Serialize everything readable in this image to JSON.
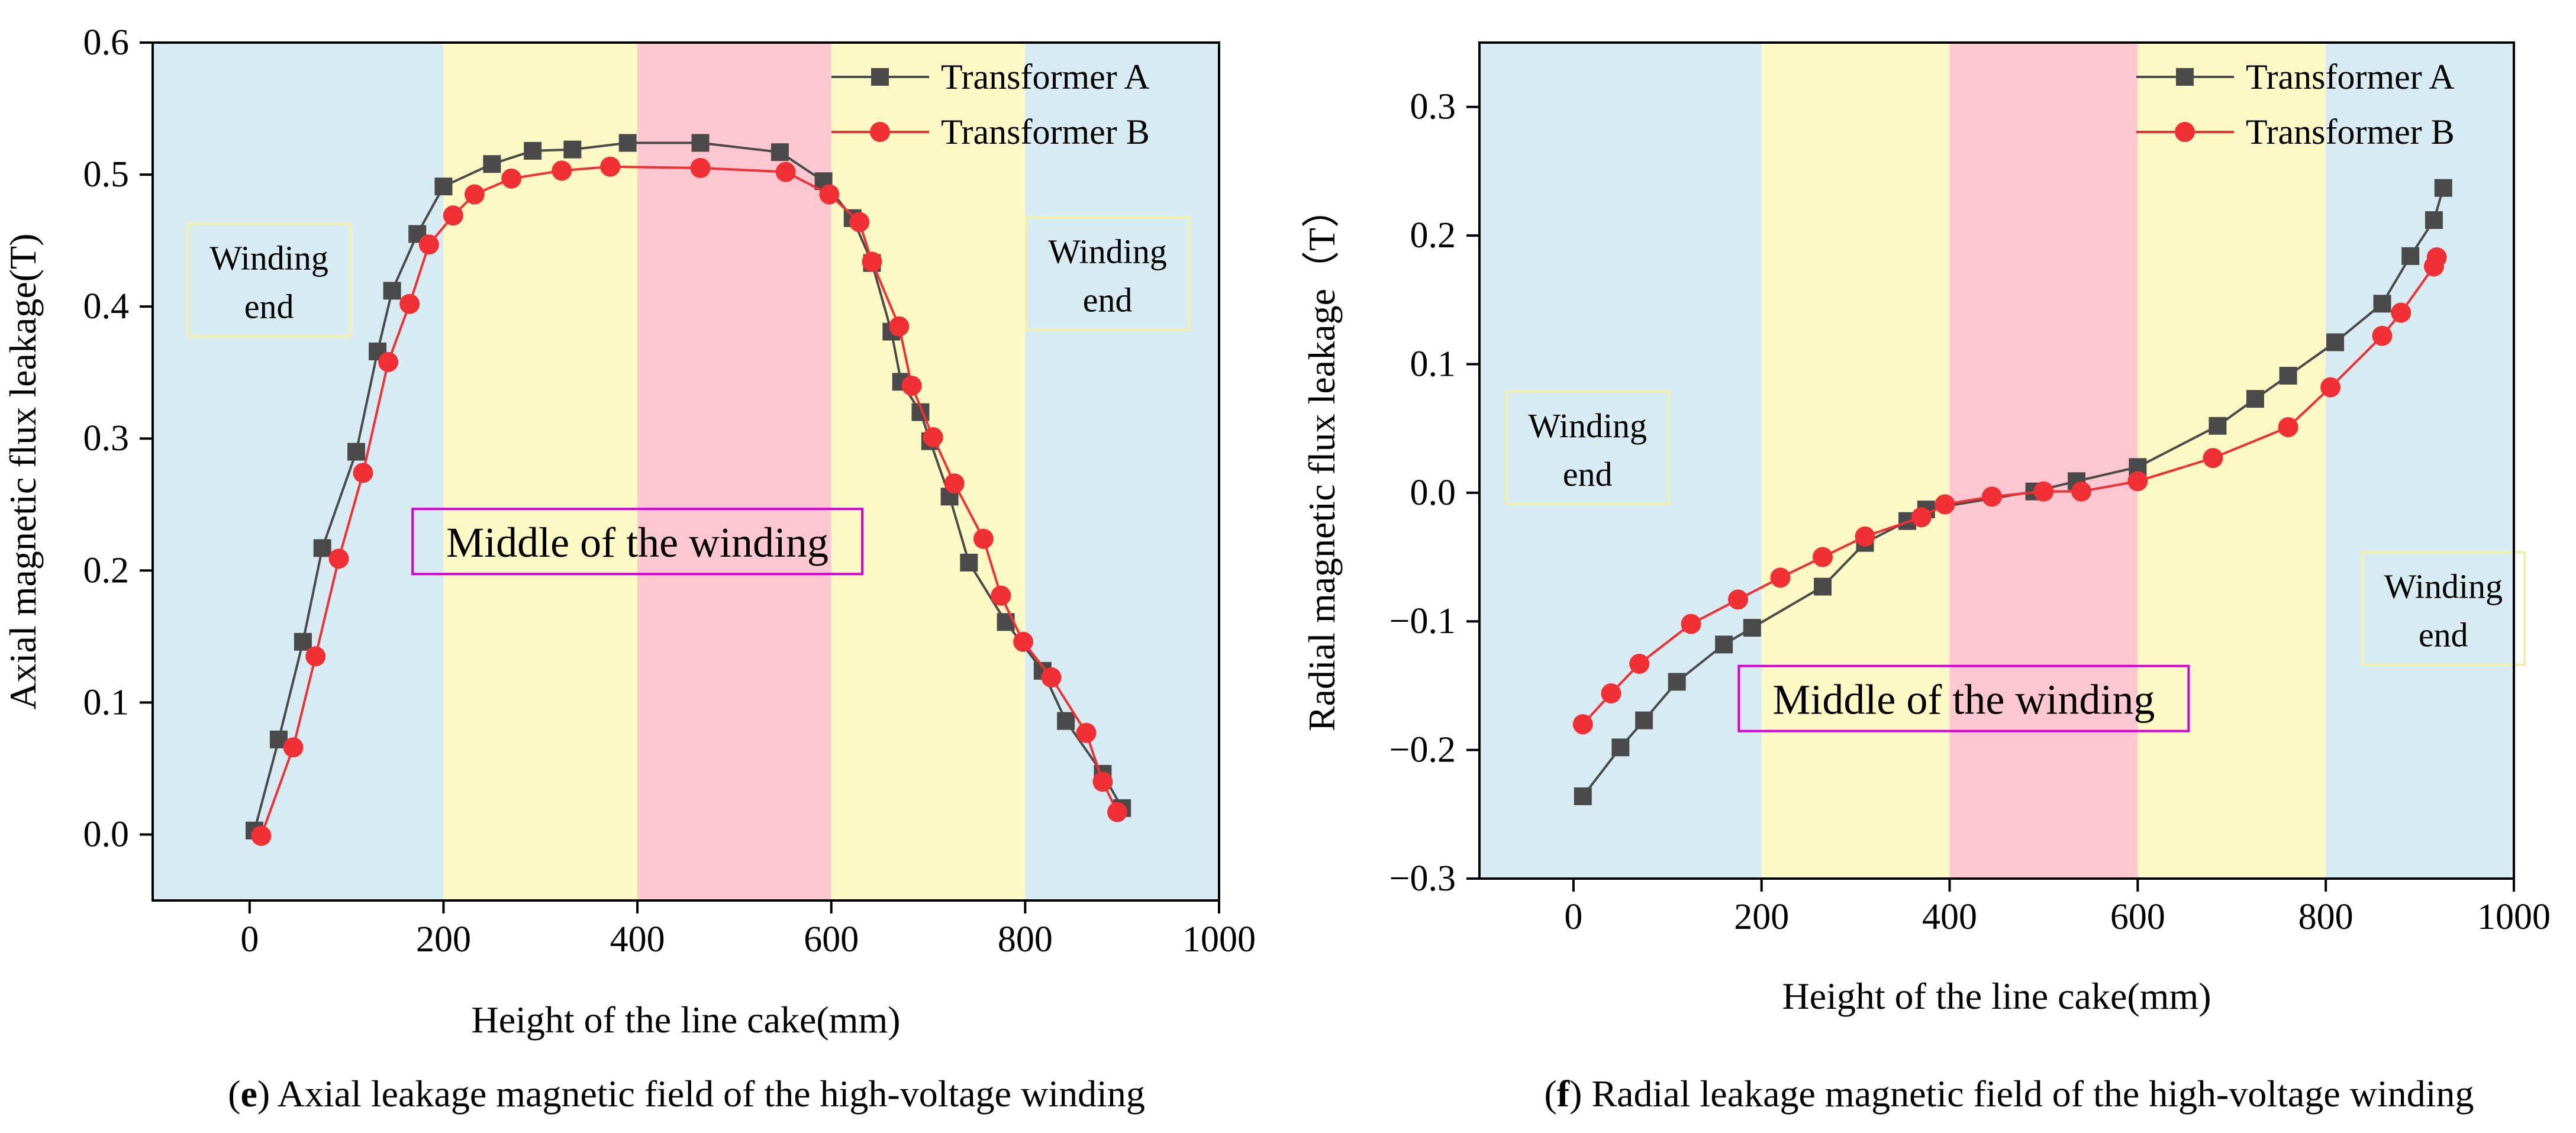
{
  "chart_data": [
    {
      "type": "line",
      "panel": "e",
      "caption_bold": "e",
      "caption_text": "Axial leakage magnetic field of the high-voltage winding",
      "xlabel": "Height of the line cake(mm)",
      "ylabel": "Axial magnetic flux leakage(T)",
      "xlim": [
        -100,
        1000
      ],
      "ylim": [
        -0.05,
        0.6
      ],
      "xticks": [
        "0",
        "200",
        "400",
        "600",
        "800",
        "1000"
      ],
      "yticks": [
        "0.0",
        "0.1",
        "0.2",
        "0.3",
        "0.4",
        "0.5",
        "0.6"
      ],
      "ytick_values": [
        0,
        0.1,
        0.2,
        0.3,
        0.4,
        0.5,
        0.6
      ],
      "xtick_values": [
        0,
        200,
        400,
        600,
        800,
        1000
      ],
      "bands": [
        {
          "from": -100,
          "to": 200,
          "color": "#d6ebf2"
        },
        {
          "from": 200,
          "to": 400,
          "color": "#fdf9c4"
        },
        {
          "from": 400,
          "to": 600,
          "color": "#ffc7d1"
        },
        {
          "from": 600,
          "to": 800,
          "color": "#fdf9c4"
        },
        {
          "from": 800,
          "to": 1000,
          "color": "#d6ebf2"
        }
      ],
      "annotations": [
        {
          "lines": [
            "Winding",
            "end"
          ],
          "x": 20,
          "y": 0.42,
          "border": "#f3eeaa"
        },
        {
          "lines": [
            "Winding",
            "end"
          ],
          "x": 885,
          "y": 0.425,
          "border": "#f3eeaa"
        },
        {
          "lines": [
            "Middle of the winding"
          ],
          "x": 400,
          "y": 0.222,
          "border": "#d400d4",
          "large": true
        }
      ],
      "series": [
        {
          "name": "Transformer A",
          "color": "#4a4a4a",
          "marker": "square",
          "x": [
            5,
            30,
            55,
            75,
            110,
            132,
            147,
            173,
            200,
            250,
            292,
            333,
            390,
            465,
            547,
            592,
            622,
            642,
            662,
            672,
            692,
            702,
            722,
            742,
            780,
            818,
            842,
            880,
            900
          ],
          "y": [
            0.003,
            0.072,
            0.146,
            0.217,
            0.29,
            0.366,
            0.412,
            0.455,
            0.491,
            0.508,
            0.518,
            0.519,
            0.524,
            0.524,
            0.517,
            0.495,
            0.467,
            0.433,
            0.381,
            0.343,
            0.32,
            0.298,
            0.256,
            0.206,
            0.161,
            0.124,
            0.086,
            0.046,
            0.02
          ]
        },
        {
          "name": "Transformer B",
          "color": "#f03035",
          "marker": "circle",
          "x": [
            12,
            45,
            68,
            92,
            117,
            143,
            165,
            185,
            210,
            232,
            270,
            322,
            372,
            465,
            553,
            598,
            629,
            642,
            670,
            683,
            705,
            727,
            757,
            775,
            798,
            827,
            863,
            880,
            895
          ],
          "y": [
            -0.001,
            0.066,
            0.135,
            0.209,
            0.274,
            0.358,
            0.402,
            0.447,
            0.469,
            0.485,
            0.497,
            0.503,
            0.506,
            0.505,
            0.502,
            0.485,
            0.464,
            0.434,
            0.385,
            0.34,
            0.301,
            0.266,
            0.224,
            0.181,
            0.146,
            0.119,
            0.077,
            0.04,
            0.017
          ]
        }
      ],
      "legend": "top-right"
    },
    {
      "type": "line",
      "panel": "f",
      "caption_bold": "f",
      "caption_text": "Radial leakage magnetic field of the high-voltage winding",
      "xlabel": "Height of the line cake(mm)",
      "ylabel": "Radial magnetic flux leakage（T）",
      "xlim": [
        -100,
        1000
      ],
      "ylim": [
        -0.3,
        0.35
      ],
      "xticks": [
        "0",
        "200",
        "400",
        "600",
        "800",
        "1000"
      ],
      "yticks": [
        "−0.3",
        "−0.2",
        "−0.1",
        "0.0",
        "0.1",
        "0.2",
        "0.3"
      ],
      "ytick_values": [
        -0.3,
        -0.2,
        -0.1,
        0,
        0.1,
        0.2,
        0.3
      ],
      "xtick_values": [
        0,
        200,
        400,
        600,
        800,
        1000
      ],
      "bands": [
        {
          "from": -100,
          "to": 200,
          "color": "#d6ebf2"
        },
        {
          "from": 200,
          "to": 400,
          "color": "#fdf9c4"
        },
        {
          "from": 400,
          "to": 600,
          "color": "#ffc7d1"
        },
        {
          "from": 600,
          "to": 800,
          "color": "#fdf9c4"
        },
        {
          "from": 800,
          "to": 1000,
          "color": "#d6ebf2"
        }
      ],
      "annotations": [
        {
          "lines": [
            "Winding",
            "end"
          ],
          "x": 15,
          "y": 0.035,
          "border": "#f3eeaa"
        },
        {
          "lines": [
            "Winding",
            "end"
          ],
          "x": 925,
          "y": -0.09,
          "border": "#f3eeaa"
        },
        {
          "lines": [
            "Middle of the winding"
          ],
          "x": 415,
          "y": -0.16,
          "border": "#d400d4",
          "large": true
        }
      ],
      "series": [
        {
          "name": "Transformer A",
          "color": "#4a4a4a",
          "marker": "square",
          "x": [
            10,
            50,
            75,
            110,
            160,
            190,
            265,
            310,
            355,
            375,
            490,
            535,
            600,
            685,
            725,
            760,
            810,
            860,
            890,
            915,
            925
          ],
          "y": [
            -0.236,
            -0.198,
            -0.177,
            -0.147,
            -0.118,
            -0.105,
            -0.073,
            -0.039,
            -0.022,
            -0.013,
            0.001,
            0.009,
            0.02,
            0.052,
            0.073,
            0.091,
            0.117,
            0.147,
            0.184,
            0.212,
            0.237
          ],
          "end_x": 925
        },
        {
          "name": "Transformer B",
          "color": "#f03035",
          "marker": "circle",
          "x": [
            10,
            40,
            70,
            125,
            175,
            220,
            265,
            310,
            370,
            395,
            445,
            500,
            540,
            600,
            680,
            760,
            805,
            860,
            880,
            915,
            918
          ],
          "y": [
            -0.18,
            -0.156,
            -0.133,
            -0.102,
            -0.083,
            -0.066,
            -0.05,
            -0.034,
            -0.019,
            -0.009,
            -0.003,
            0.001,
            0.001,
            0.009,
            0.027,
            0.051,
            0.082,
            0.122,
            0.14,
            0.176,
            0.183
          ]
        }
      ],
      "legend": "top-right"
    }
  ]
}
